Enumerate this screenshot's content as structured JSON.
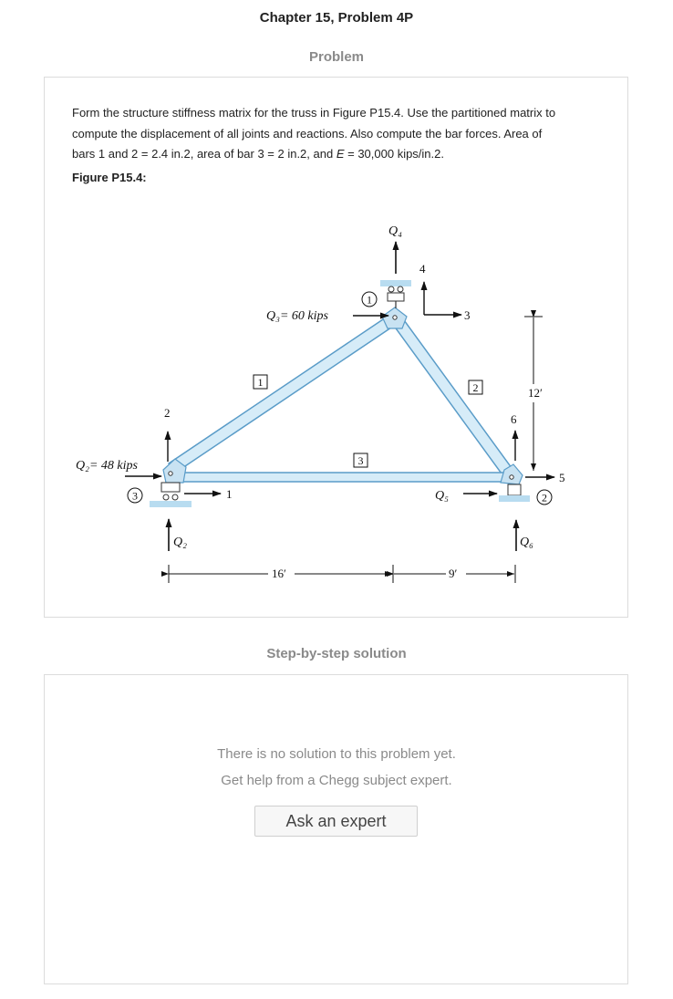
{
  "header": {
    "title": "Chapter 15, Problem 4P",
    "problem_label": "Problem",
    "solution_label": "Step-by-step solution"
  },
  "problem": {
    "text_line1": "Form the structure stiffness matrix for the truss in Figure P15.4. Use the partitioned matrix to",
    "text_line2": "compute the displacement of all joints and reactions. Also compute the bar forces. Area of",
    "text_line3a": "bars 1 and 2 = 2.4 in.2, area of bar 3 = 2 in.2, and ",
    "text_line3_var": "E",
    "text_line3b": " = 30,000 kips/in.2.",
    "figure_label": "Figure P15.4:"
  },
  "figure": {
    "load_q3": "Q₃= 60 kips",
    "load_q2": "Q₂= 48 kips",
    "q4_label": "Q₄",
    "q5_label": "Q₅",
    "q6_label": "Q₆",
    "q2_reaction_label": "Q₂",
    "dof_1": "1",
    "dof_2": "2",
    "dof_3": "3",
    "dof_4": "4",
    "dof_5": "5",
    "dof_6": "6",
    "joint_1": "1",
    "joint_2": "2",
    "joint_3": "3",
    "bar_1": "1",
    "bar_2": "2",
    "bar_3": "3",
    "dim_16": "16′",
    "dim_9": "9′",
    "dim_12": "12′"
  },
  "solution": {
    "empty_line1": "There is no solution to this problem yet.",
    "empty_line2": "Get help from a Chegg subject expert.",
    "ask_button": "Ask an expert"
  },
  "colors": {
    "member_fill": "#d6ecf8",
    "member_stroke": "#5a9cc8",
    "border": "#dcdcdc"
  }
}
